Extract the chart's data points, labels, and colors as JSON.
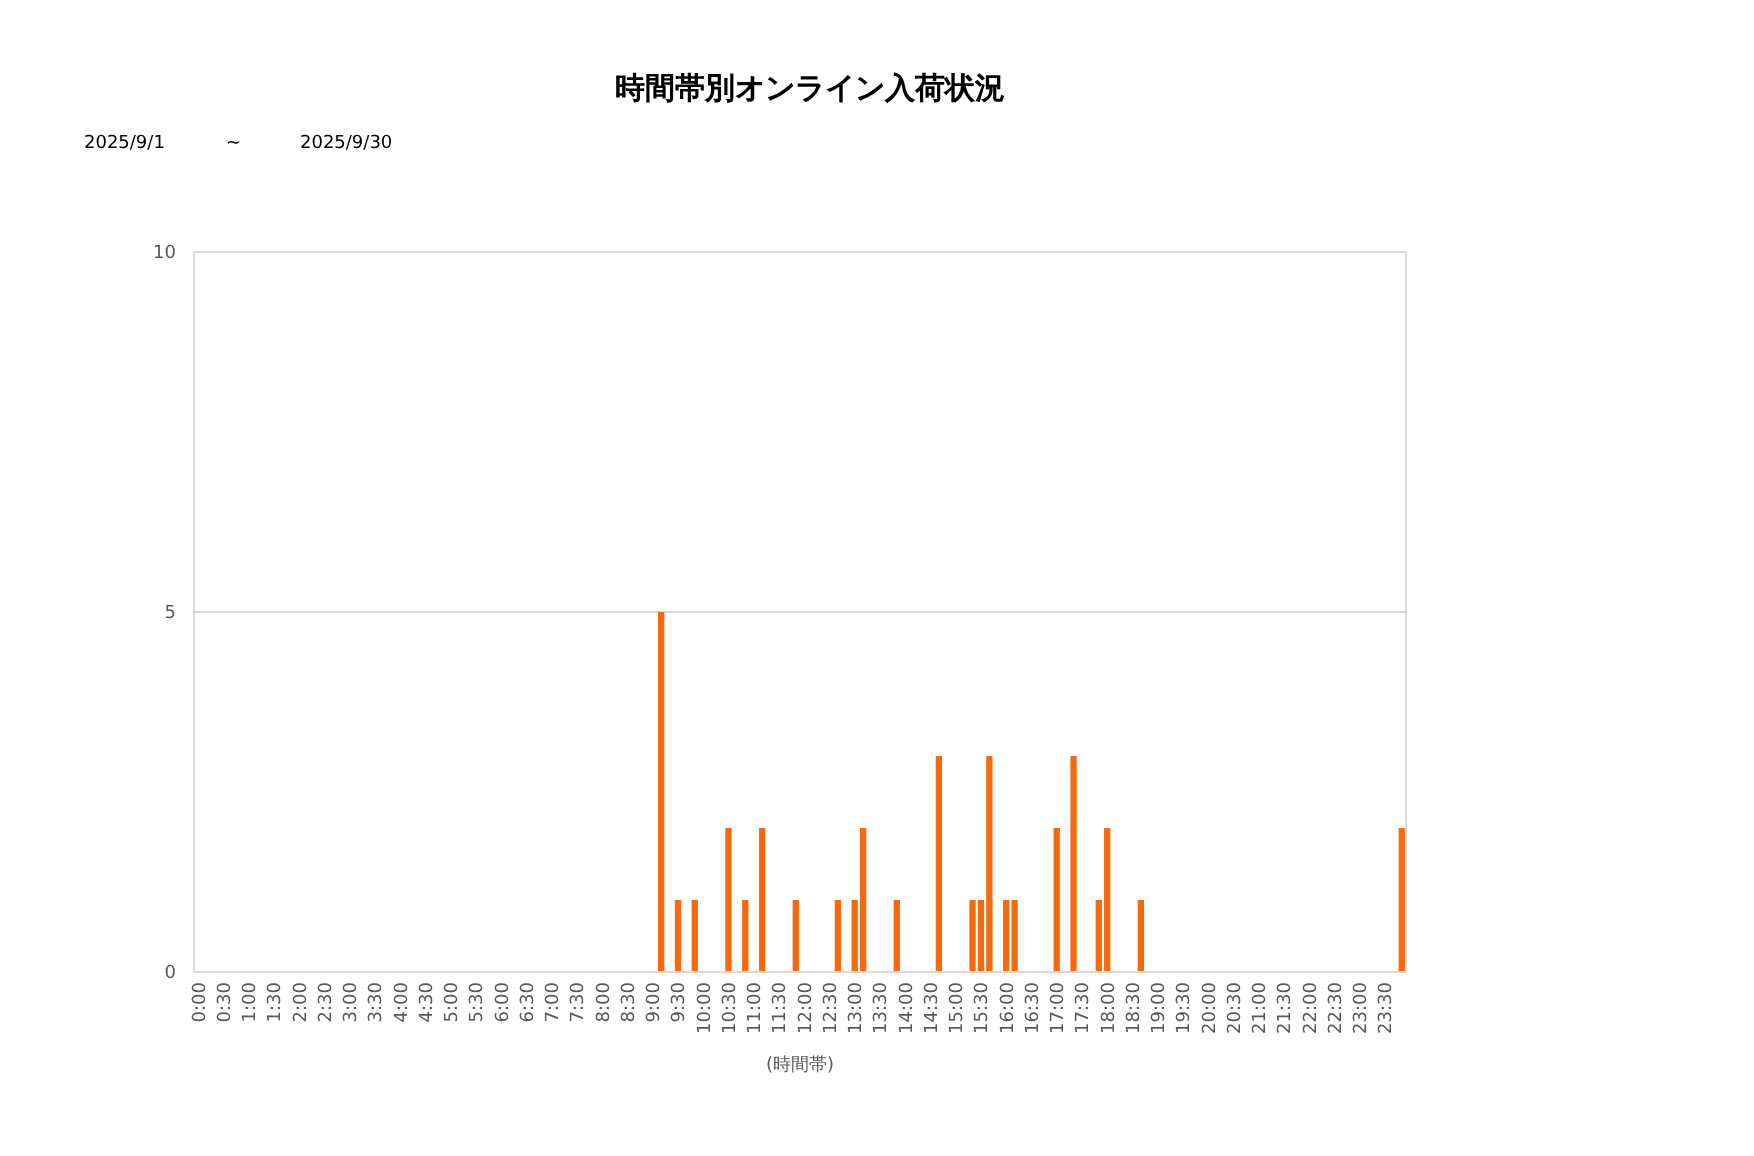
{
  "chart_data": {
    "type": "bar",
    "title": "時間帯別オンライン入荷状況",
    "annotations": [
      "2025/9/1",
      "~",
      "2025/9/30"
    ],
    "xlabel": "(時間帯)",
    "categories": [
      "0:00",
      null,
      null,
      "0:30",
      null,
      null,
      "1:00",
      null,
      null,
      "1:30",
      null,
      null,
      "2:00",
      null,
      null,
      "2:30",
      null,
      null,
      "3:00",
      null,
      null,
      "3:30",
      null,
      null,
      "4:00",
      null,
      null,
      "4:30",
      null,
      null,
      "5:00",
      null,
      null,
      "5:30",
      null,
      null,
      "6:00",
      null,
      null,
      "6:30",
      null,
      null,
      "7:00",
      null,
      null,
      "7:30",
      null,
      null,
      "8:00",
      null,
      null,
      "8:30",
      null,
      null,
      "9:00",
      null,
      null,
      "9:30",
      null,
      null,
      "10:00",
      null,
      null,
      "10:30",
      null,
      null,
      "11:00",
      null,
      null,
      "11:30",
      null,
      null,
      "12:00",
      null,
      null,
      "12:30",
      null,
      null,
      "13:00",
      null,
      null,
      "13:30",
      null,
      null,
      "14:00",
      null,
      null,
      "14:30",
      null,
      null,
      "15:00",
      null,
      null,
      "15:30",
      null,
      null,
      "16:00",
      null,
      null,
      "16:30",
      null,
      null,
      "17:00",
      null,
      null,
      "17:30",
      null,
      null,
      "18:00",
      null,
      null,
      "18:30",
      null,
      null,
      "19:00",
      null,
      null,
      "19:30",
      null,
      null,
      "20:00",
      null,
      null,
      "20:30",
      null,
      null,
      "21:00",
      null,
      null,
      "21:30",
      null,
      null,
      "22:00",
      null,
      null,
      "22:30",
      null,
      null,
      "23:00",
      null,
      null,
      "23:30",
      null,
      null
    ],
    "values": [
      0,
      0,
      0,
      0,
      0,
      0,
      0,
      0,
      0,
      0,
      0,
      0,
      0,
      0,
      0,
      0,
      0,
      0,
      0,
      0,
      0,
      0,
      0,
      0,
      0,
      0,
      0,
      0,
      0,
      0,
      0,
      0,
      0,
      0,
      0,
      0,
      0,
      0,
      0,
      0,
      0,
      0,
      0,
      0,
      0,
      0,
      0,
      0,
      0,
      0,
      0,
      0,
      0,
      0,
      0,
      5,
      0,
      1,
      0,
      1,
      0,
      0,
      0,
      2,
      0,
      1,
      0,
      2,
      0,
      0,
      0,
      1,
      0,
      0,
      0,
      0,
      1,
      0,
      1,
      2,
      0,
      0,
      0,
      1,
      0,
      0,
      0,
      0,
      3,
      0,
      0,
      0,
      1,
      1,
      3,
      0,
      1,
      1,
      0,
      0,
      0,
      0,
      2,
      0,
      3,
      0,
      0,
      1,
      2,
      0,
      0,
      0,
      1,
      0,
      0,
      0,
      0,
      0,
      0,
      0,
      0,
      0,
      0,
      0,
      0,
      0,
      0,
      0,
      0,
      0,
      0,
      0,
      0,
      0,
      0,
      0,
      0,
      0,
      0,
      0,
      0,
      0,
      0,
      2
    ],
    "color": "#f56a0f",
    "ylim": [
      0,
      10
    ],
    "yticks": [
      0,
      5,
      10
    ],
    "grid": "y"
  }
}
